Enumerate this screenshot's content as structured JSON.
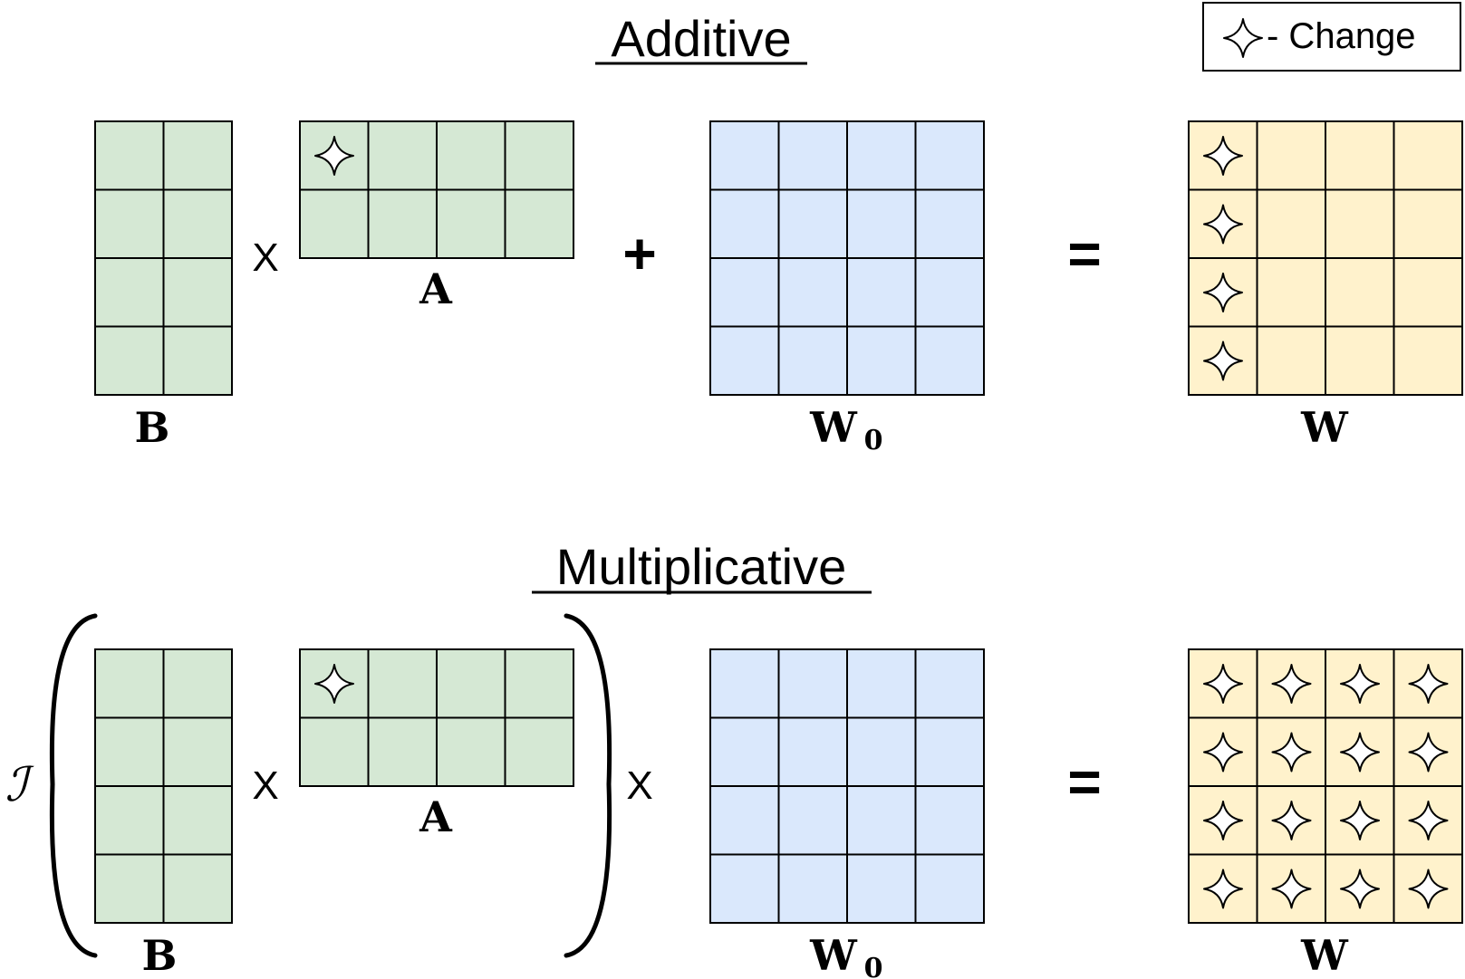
{
  "legend": {
    "text": "- Change",
    "icon": "sparkle-star-icon"
  },
  "colors": {
    "green": "#d5e8d4",
    "blue": "#dae8fc",
    "yellow": "#fff2cc",
    "stroke": "#000000"
  },
  "additive": {
    "title": "Additive",
    "ops": {
      "times": "X",
      "plus": "+",
      "equals": "="
    },
    "labels": {
      "b": "B",
      "a": "A",
      "w0": "W",
      "w0_sub": "0",
      "w": "W"
    },
    "matrices": {
      "b": {
        "rows": 4,
        "cols": 2,
        "color": "green",
        "changed": []
      },
      "a": {
        "rows": 2,
        "cols": 4,
        "color": "green",
        "changed": [
          [
            0,
            0
          ]
        ]
      },
      "w0": {
        "rows": 4,
        "cols": 4,
        "color": "blue",
        "changed": []
      },
      "w": {
        "rows": 4,
        "cols": 4,
        "color": "yellow",
        "changed": [
          [
            0,
            0
          ],
          [
            1,
            0
          ],
          [
            2,
            0
          ],
          [
            3,
            0
          ]
        ]
      }
    }
  },
  "multiplicative": {
    "title": "Multiplicative",
    "prefix": "ℐ",
    "ops": {
      "times1": "X",
      "times2": "X",
      "equals": "="
    },
    "labels": {
      "b": "B",
      "a": "A",
      "w0": "W",
      "w0_sub": "0",
      "w": "W"
    },
    "matrices": {
      "b": {
        "rows": 4,
        "cols": 2,
        "color": "green",
        "changed": []
      },
      "a": {
        "rows": 2,
        "cols": 4,
        "color": "green",
        "changed": [
          [
            0,
            0
          ]
        ]
      },
      "w0": {
        "rows": 4,
        "cols": 4,
        "color": "blue",
        "changed": []
      },
      "w": {
        "rows": 4,
        "cols": 4,
        "color": "yellow",
        "changed": "all"
      }
    }
  }
}
